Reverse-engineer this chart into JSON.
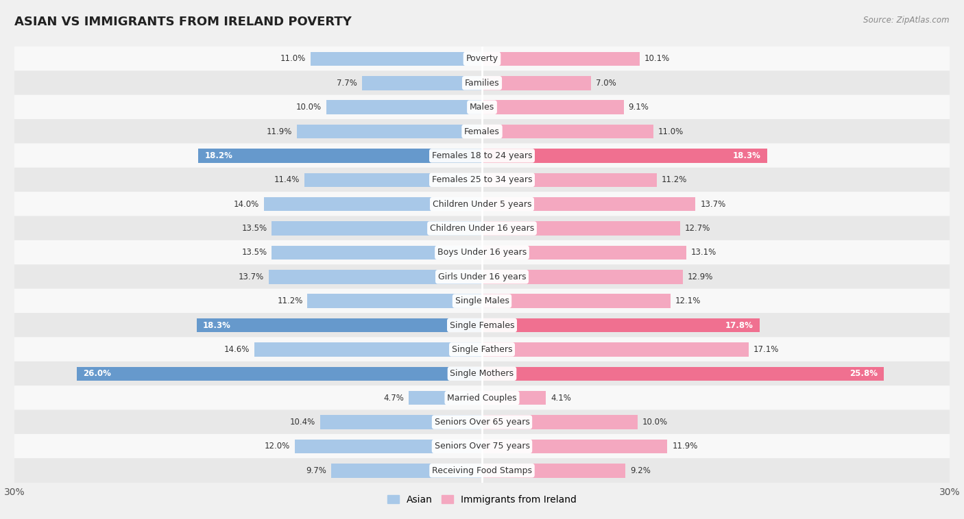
{
  "title": "ASIAN VS IMMIGRANTS FROM IRELAND POVERTY",
  "source": "Source: ZipAtlas.com",
  "categories": [
    "Poverty",
    "Families",
    "Males",
    "Females",
    "Females 18 to 24 years",
    "Females 25 to 34 years",
    "Children Under 5 years",
    "Children Under 16 years",
    "Boys Under 16 years",
    "Girls Under 16 years",
    "Single Males",
    "Single Females",
    "Single Fathers",
    "Single Mothers",
    "Married Couples",
    "Seniors Over 65 years",
    "Seniors Over 75 years",
    "Receiving Food Stamps"
  ],
  "asian_values": [
    11.0,
    7.7,
    10.0,
    11.9,
    18.2,
    11.4,
    14.0,
    13.5,
    13.5,
    13.7,
    11.2,
    18.3,
    14.6,
    26.0,
    4.7,
    10.4,
    12.0,
    9.7
  ],
  "ireland_values": [
    10.1,
    7.0,
    9.1,
    11.0,
    18.3,
    11.2,
    13.7,
    12.7,
    13.1,
    12.9,
    12.1,
    17.8,
    17.1,
    25.8,
    4.1,
    10.0,
    11.9,
    9.2
  ],
  "asian_color": "#a8c8e8",
  "ireland_color": "#f4a8c0",
  "asian_highlight_color": "#6699cc",
  "ireland_highlight_color": "#f07090",
  "highlight_rows": [
    4,
    11,
    13
  ],
  "axis_max": 30.0,
  "bg_color": "#f0f0f0",
  "row_bg_light": "#f8f8f8",
  "row_bg_dark": "#e8e8e8",
  "bar_height": 0.58,
  "label_fontsize": 9.0,
  "value_fontsize": 8.5,
  "title_fontsize": 13,
  "legend_labels": [
    "Asian",
    "Immigrants from Ireland"
  ]
}
